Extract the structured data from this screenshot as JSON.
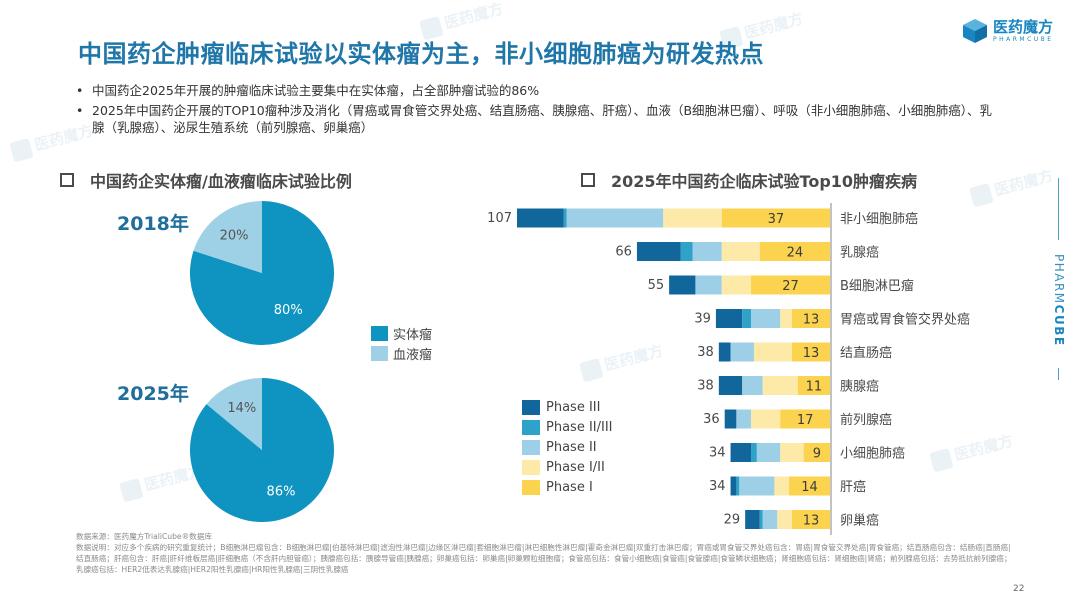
{
  "header": {
    "title": "中国药企肿瘤临床试验以实体瘤为主，非小细胞肺癌为研发热点",
    "logo_cn": "医药魔方",
    "logo_en": "PHARMCUBE"
  },
  "bullets": [
    "中国药企2025年开展的肿瘤临床试验主要集中在实体瘤，占全部肿瘤试验的86%",
    "2025年中国药企开展的TOP10瘤种涉及消化（胃癌或胃食管交界处癌、结直肠癌、胰腺癌、肝癌）、血液（B细胞淋巴瘤）、呼吸（非小细胞肺癌、小细胞肺癌）、乳腺（乳腺癌）、泌尿生殖系统（前列腺癌、卵巢癌）"
  ],
  "left_section": {
    "title": "中国药企实体瘤/血液瘤临床试验比例",
    "year_2018": "2018年",
    "year_2025": "2025年",
    "legend": [
      "实体瘤",
      "血液瘤"
    ]
  },
  "right_section": {
    "title": "2025年中国药企临床试验Top10肿瘤疾病"
  },
  "colors": {
    "title_blue": "#1f76a8",
    "solid": "#0f93c0",
    "blood": "#9fd1e6",
    "phase_iii": "#11679b",
    "phase_ii_iii": "#2ea2c9",
    "phase_ii": "#9dd0e6",
    "phase_i_ii": "#fde9a8",
    "phase_i": "#fcd34f"
  },
  "chart_data": [
    {
      "type": "pie",
      "title": "2018年",
      "labels": [
        "实体瘤",
        "血液瘤"
      ],
      "values": [
        80,
        20
      ],
      "value_labels": [
        "80%",
        "20%"
      ]
    },
    {
      "type": "pie",
      "title": "2025年",
      "labels": [
        "实体瘤",
        "血液瘤"
      ],
      "values": [
        86,
        14
      ],
      "value_labels": [
        "86%",
        "14%"
      ]
    },
    {
      "type": "bar",
      "orientation": "horizontal-stacked",
      "title": "2025年中国药企临床试验Top10肿瘤疾病",
      "categories": [
        "非小细胞肺癌",
        "乳腺癌",
        "B细胞淋巴瘤",
        "胃癌或胃食管交界处癌",
        "结直肠癌",
        "胰腺癌",
        "前列腺癌",
        "小细胞肺癌",
        "肝癌",
        "卵巢癌"
      ],
      "totals": [
        107,
        66,
        55,
        39,
        38,
        38,
        36,
        34,
        34,
        29
      ],
      "series": [
        {
          "name": "Phase III",
          "values": [
            16,
            15,
            9,
            9,
            4,
            8,
            4,
            7,
            2,
            5
          ]
        },
        {
          "name": "Phase II/III",
          "values": [
            1,
            4,
            0,
            3,
            0,
            0,
            0,
            2,
            1,
            1
          ]
        },
        {
          "name": "Phase II",
          "values": [
            33,
            10,
            9,
            10,
            8,
            7,
            5,
            8,
            12,
            5
          ]
        },
        {
          "name": "Phase I/II",
          "values": [
            20,
            13,
            10,
            4,
            13,
            12,
            10,
            8,
            5,
            5
          ]
        },
        {
          "name": "Phase I",
          "values": [
            37,
            24,
            27,
            13,
            13,
            11,
            17,
            9,
            14,
            13
          ]
        }
      ],
      "labeled_series": "Phase I",
      "legend": [
        "Phase III",
        "Phase II/III",
        "Phase II",
        "Phase I/II",
        "Phase I"
      ],
      "legend_position": "bottom-left",
      "xlim": [
        0,
        107
      ]
    }
  ],
  "footer": {
    "source": "数据来源：医药魔方TrialiCube®数据库",
    "notes": "数据说明：对应多个疾病的研究重复统计；B细胞淋巴瘤包含：B细胞淋巴瘤|伯基特淋巴瘤|滤泡性淋巴瘤|边缘区淋巴瘤|套细胞淋巴瘤|淋巴细胞性淋巴瘤|霍奇金淋巴瘤|双重打击淋巴瘤；胃癌或胃食管交界处癌包含：胃癌|胃食管交界处癌|胃食管癌；结直肠癌包含：结肠癌|直肠癌|结直肠癌；肝癌包含：肝癌|肝纤维板层癌|肝细胞癌（不含肝内胆管癌）；胰腺癌包括：胰腺导管癌|胰腺癌；卵巢癌包括：卵巢癌|卵巢颗粒细胞瘤；食管癌包括：食管小细胞癌|食管癌|食管腺癌|食管鳞状细胞癌；肾细胞癌包括：肾细胞癌|肾癌；前列腺癌包括：去势抵抗前列腺癌；乳腺癌包括：HER2低表达乳腺癌|HER2阳性乳腺癌|HR阳性乳腺癌|三阴性乳腺癌",
    "page_number": "22"
  },
  "side_brand": {
    "light": "PHARM",
    "bold": "CUBE"
  },
  "watermark": "医药魔方"
}
